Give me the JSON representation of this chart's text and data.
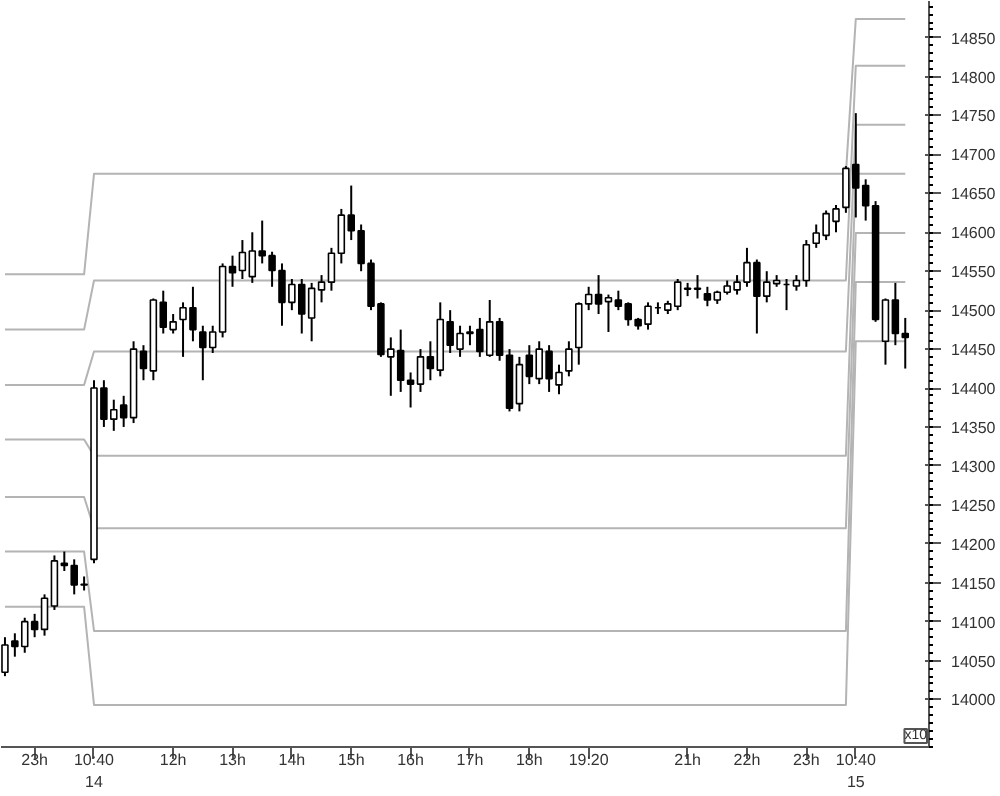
{
  "chart_data": {
    "type": "candlestick",
    "categories": [
      null,
      null,
      null,
      "23h",
      null,
      null,
      null,
      null,
      null,
      "10:40\n14",
      null,
      null,
      null,
      null,
      null,
      null,
      null,
      "12h",
      null,
      null,
      null,
      null,
      null,
      "13h",
      null,
      null,
      null,
      null,
      null,
      "14h",
      null,
      null,
      null,
      null,
      null,
      "15h",
      null,
      null,
      null,
      null,
      null,
      "16h",
      null,
      null,
      null,
      null,
      null,
      "17h",
      null,
      null,
      null,
      null,
      null,
      "18h",
      null,
      null,
      null,
      null,
      null,
      "19:20",
      null,
      null,
      null,
      null,
      null,
      null,
      null,
      null,
      null,
      "21h",
      null,
      null,
      null,
      null,
      null,
      "22h",
      null,
      null,
      null,
      null,
      null,
      "23h",
      null,
      null,
      null,
      null,
      "10:40\n15",
      null,
      null,
      null,
      null,
      null
    ],
    "ohlc": [
      [
        14035,
        14080,
        14030,
        14070
      ],
      [
        14075,
        14085,
        14055,
        14068
      ],
      [
        14068,
        14105,
        14060,
        14100
      ],
      [
        14100,
        14110,
        14080,
        14090
      ],
      [
        14090,
        14135,
        14082,
        14130
      ],
      [
        14120,
        14185,
        14115,
        14178
      ],
      [
        14175,
        14190,
        14165,
        14172
      ],
      [
        14172,
        14180,
        14135,
        14147
      ],
      [
        14147,
        14158,
        14140,
        14148
      ],
      [
        14180,
        14410,
        14175,
        14400
      ],
      [
        14400,
        14410,
        14350,
        14360
      ],
      [
        14360,
        14385,
        14345,
        14372
      ],
      [
        14378,
        14390,
        14350,
        14362
      ],
      [
        14362,
        14460,
        14355,
        14450
      ],
      [
        14447,
        14455,
        14410,
        14425
      ],
      [
        14422,
        14515,
        14410,
        14513
      ],
      [
        14510,
        14525,
        14470,
        14478
      ],
      [
        14475,
        14495,
        14470,
        14485
      ],
      [
        14488,
        14510,
        14440,
        14503
      ],
      [
        14503,
        14530,
        14460,
        14475
      ],
      [
        14472,
        14480,
        14410,
        14452
      ],
      [
        14452,
        14480,
        14445,
        14472
      ],
      [
        14472,
        14560,
        14465,
        14556
      ],
      [
        14556,
        14570,
        14530,
        14548
      ],
      [
        14551,
        14590,
        14540,
        14574
      ],
      [
        14543,
        14600,
        14535,
        14576
      ],
      [
        14576,
        14615,
        14560,
        14570
      ],
      [
        14570,
        14575,
        14530,
        14551
      ],
      [
        14551,
        14560,
        14480,
        14510
      ],
      [
        14510,
        14540,
        14500,
        14533
      ],
      [
        14533,
        14540,
        14470,
        14495
      ],
      [
        14490,
        14535,
        14460,
        14528
      ],
      [
        14526,
        14545,
        14510,
        14536
      ],
      [
        14536,
        14580,
        14525,
        14573
      ],
      [
        14573,
        14630,
        14560,
        14622
      ],
      [
        14622,
        14660,
        14590,
        14602
      ],
      [
        14602,
        14610,
        14550,
        14560
      ],
      [
        14560,
        14565,
        14500,
        14505
      ],
      [
        14508,
        14510,
        14440,
        14443
      ],
      [
        14440,
        14465,
        14390,
        14450
      ],
      [
        14448,
        14475,
        14395,
        14410
      ],
      [
        14410,
        14420,
        14375,
        14405
      ],
      [
        14405,
        14450,
        14395,
        14440
      ],
      [
        14440,
        14460,
        14410,
        14425
      ],
      [
        14423,
        14510,
        14415,
        14488
      ],
      [
        14485,
        14500,
        14445,
        14455
      ],
      [
        14450,
        14480,
        14440,
        14470
      ],
      [
        14470,
        14480,
        14455,
        14472
      ],
      [
        14475,
        14490,
        14440,
        14447
      ],
      [
        14442,
        14513,
        14440,
        14485
      ],
      [
        14485,
        14490,
        14435,
        14442
      ],
      [
        14442,
        14450,
        14370,
        14374
      ],
      [
        14380,
        14440,
        14370,
        14430
      ],
      [
        14442,
        14455,
        14405,
        14415
      ],
      [
        14412,
        14460,
        14405,
        14450
      ],
      [
        14447,
        14455,
        14395,
        14412
      ],
      [
        14404,
        14430,
        14392,
        14420
      ],
      [
        14422,
        14460,
        14415,
        14450
      ],
      [
        14452,
        14510,
        14430,
        14508
      ],
      [
        14508,
        14530,
        14500,
        14520
      ],
      [
        14520,
        14545,
        14495,
        14508
      ],
      [
        14511,
        14520,
        14472,
        14516
      ],
      [
        14513,
        14525,
        14500,
        14505
      ],
      [
        14508,
        14510,
        14480,
        14488
      ],
      [
        14488,
        14490,
        14475,
        14480
      ],
      [
        14482,
        14510,
        14475,
        14505
      ],
      [
        14503,
        14510,
        14495,
        14503
      ],
      [
        14500,
        14512,
        14495,
        14508
      ],
      [
        14505,
        14540,
        14500,
        14536
      ],
      [
        14528,
        14535,
        14518,
        14527
      ],
      [
        14527,
        14545,
        14515,
        14528
      ],
      [
        14521,
        14530,
        14505,
        14513
      ],
      [
        14513,
        14525,
        14508,
        14523
      ],
      [
        14523,
        14538,
        14520,
        14531
      ],
      [
        14526,
        14545,
        14520,
        14536
      ],
      [
        14536,
        14580,
        14530,
        14561
      ],
      [
        14561,
        14565,
        14470,
        14518
      ],
      [
        14518,
        14550,
        14510,
        14536
      ],
      [
        14534,
        14545,
        14530,
        14538
      ],
      [
        14533,
        14540,
        14500,
        14533
      ],
      [
        14531,
        14545,
        14525,
        14538
      ],
      [
        14538,
        14590,
        14530,
        14584
      ],
      [
        14586,
        14610,
        14580,
        14599
      ],
      [
        14596,
        14628,
        14590,
        14624
      ],
      [
        14614,
        14635,
        14600,
        14630
      ],
      [
        14632,
        14685,
        14625,
        14682
      ],
      [
        14687,
        14753,
        14619,
        14657
      ],
      [
        14660,
        14668,
        14615,
        14634
      ],
      [
        14634,
        14640,
        14485,
        14488
      ],
      [
        14460,
        14515,
        14430,
        14513
      ],
      [
        14513,
        14535,
        14455,
        14470
      ],
      [
        14470,
        14490,
        14425,
        14465
      ]
    ],
    "series": [
      {
        "type": "line",
        "color": "#b4b4b4",
        "values": [
          14546,
          14546,
          14546,
          14546,
          14546,
          14546,
          14546,
          14546,
          14546,
          14675,
          14675,
          14675,
          14675,
          14675,
          14675,
          14675,
          14675,
          14675,
          14675,
          14675,
          14675,
          14675,
          14675,
          14675,
          14675,
          14675,
          14675,
          14675,
          14675,
          14675,
          14675,
          14675,
          14675,
          14675,
          14675,
          14675,
          14675,
          14675,
          14675,
          14675,
          14675,
          14675,
          14675,
          14675,
          14675,
          14675,
          14675,
          14675,
          14675,
          14675,
          14675,
          14675,
          14675,
          14675,
          14675,
          14675,
          14675,
          14675,
          14675,
          14675,
          14675,
          14675,
          14675,
          14675,
          14675,
          14675,
          14675,
          14675,
          14675,
          14675,
          14675,
          14675,
          14675,
          14675,
          14675,
          14675,
          14675,
          14675,
          14675,
          14675,
          14675,
          14675,
          14675,
          14675,
          14675,
          14675,
          14874,
          14874,
          14874,
          14874,
          14874,
          14874
        ]
      },
      {
        "type": "line",
        "color": "#b4b4b4",
        "values": [
          14475,
          14475,
          14475,
          14475,
          14475,
          14475,
          14475,
          14475,
          14475,
          14538,
          14538,
          14538,
          14538,
          14538,
          14538,
          14538,
          14538,
          14538,
          14538,
          14538,
          14538,
          14538,
          14538,
          14538,
          14538,
          14538,
          14538,
          14538,
          14538,
          14538,
          14538,
          14538,
          14538,
          14538,
          14538,
          14538,
          14538,
          14538,
          14538,
          14538,
          14538,
          14538,
          14538,
          14538,
          14538,
          14538,
          14538,
          14538,
          14538,
          14538,
          14538,
          14538,
          14538,
          14538,
          14538,
          14538,
          14538,
          14538,
          14538,
          14538,
          14538,
          14538,
          14538,
          14538,
          14538,
          14538,
          14538,
          14538,
          14538,
          14538,
          14538,
          14538,
          14538,
          14538,
          14538,
          14538,
          14538,
          14538,
          14538,
          14538,
          14538,
          14538,
          14538,
          14538,
          14538,
          14538,
          14814,
          14814,
          14814,
          14814,
          14814,
          14814
        ]
      },
      {
        "type": "line",
        "color": "#b4b4b4",
        "values": [
          14404,
          14404,
          14404,
          14404,
          14404,
          14404,
          14404,
          14404,
          14404,
          14447,
          14447,
          14447,
          14447,
          14447,
          14447,
          14447,
          14447,
          14447,
          14447,
          14447,
          14447,
          14447,
          14447,
          14447,
          14447,
          14447,
          14447,
          14447,
          14447,
          14447,
          14447,
          14447,
          14447,
          14447,
          14447,
          14447,
          14447,
          14447,
          14447,
          14447,
          14447,
          14447,
          14447,
          14447,
          14447,
          14447,
          14447,
          14447,
          14447,
          14447,
          14447,
          14447,
          14447,
          14447,
          14447,
          14447,
          14447,
          14447,
          14447,
          14447,
          14447,
          14447,
          14447,
          14447,
          14447,
          14447,
          14447,
          14447,
          14447,
          14447,
          14447,
          14447,
          14447,
          14447,
          14447,
          14447,
          14447,
          14447,
          14447,
          14447,
          14447,
          14447,
          14447,
          14447,
          14447,
          14447,
          14738,
          14738,
          14738,
          14738,
          14738,
          14738
        ]
      },
      {
        "type": "line",
        "color": "#b4b4b4",
        "values": [
          14334,
          14334,
          14334,
          14334,
          14334,
          14334,
          14334,
          14334,
          14334,
          14313,
          14313,
          14313,
          14313,
          14313,
          14313,
          14313,
          14313,
          14313,
          14313,
          14313,
          14313,
          14313,
          14313,
          14313,
          14313,
          14313,
          14313,
          14313,
          14313,
          14313,
          14313,
          14313,
          14313,
          14313,
          14313,
          14313,
          14313,
          14313,
          14313,
          14313,
          14313,
          14313,
          14313,
          14313,
          14313,
          14313,
          14313,
          14313,
          14313,
          14313,
          14313,
          14313,
          14313,
          14313,
          14313,
          14313,
          14313,
          14313,
          14313,
          14313,
          14313,
          14313,
          14313,
          14313,
          14313,
          14313,
          14313,
          14313,
          14313,
          14313,
          14313,
          14313,
          14313,
          14313,
          14313,
          14313,
          14313,
          14313,
          14313,
          14313,
          14313,
          14313,
          14313,
          14313,
          14313,
          14313,
          14675,
          14675,
          14675,
          14675,
          14675,
          14675
        ]
      },
      {
        "type": "line",
        "color": "#b4b4b4",
        "values": [
          14260,
          14260,
          14260,
          14260,
          14260,
          14260,
          14260,
          14260,
          14260,
          14220,
          14220,
          14220,
          14220,
          14220,
          14220,
          14220,
          14220,
          14220,
          14220,
          14220,
          14220,
          14220,
          14220,
          14220,
          14220,
          14220,
          14220,
          14220,
          14220,
          14220,
          14220,
          14220,
          14220,
          14220,
          14220,
          14220,
          14220,
          14220,
          14220,
          14220,
          14220,
          14220,
          14220,
          14220,
          14220,
          14220,
          14220,
          14220,
          14220,
          14220,
          14220,
          14220,
          14220,
          14220,
          14220,
          14220,
          14220,
          14220,
          14220,
          14220,
          14220,
          14220,
          14220,
          14220,
          14220,
          14220,
          14220,
          14220,
          14220,
          14220,
          14220,
          14220,
          14220,
          14220,
          14220,
          14220,
          14220,
          14220,
          14220,
          14220,
          14220,
          14220,
          14220,
          14220,
          14220,
          14220,
          14599,
          14599,
          14599,
          14599,
          14599,
          14599
        ]
      },
      {
        "type": "line",
        "color": "#b4b4b4",
        "values": [
          14190,
          14190,
          14190,
          14190,
          14190,
          14190,
          14190,
          14190,
          14190,
          14088,
          14088,
          14088,
          14088,
          14088,
          14088,
          14088,
          14088,
          14088,
          14088,
          14088,
          14088,
          14088,
          14088,
          14088,
          14088,
          14088,
          14088,
          14088,
          14088,
          14088,
          14088,
          14088,
          14088,
          14088,
          14088,
          14088,
          14088,
          14088,
          14088,
          14088,
          14088,
          14088,
          14088,
          14088,
          14088,
          14088,
          14088,
          14088,
          14088,
          14088,
          14088,
          14088,
          14088,
          14088,
          14088,
          14088,
          14088,
          14088,
          14088,
          14088,
          14088,
          14088,
          14088,
          14088,
          14088,
          14088,
          14088,
          14088,
          14088,
          14088,
          14088,
          14088,
          14088,
          14088,
          14088,
          14088,
          14088,
          14088,
          14088,
          14088,
          14088,
          14088,
          14088,
          14088,
          14088,
          14088,
          14536,
          14536,
          14536,
          14536,
          14536,
          14536
        ]
      },
      {
        "type": "line",
        "color": "#b4b4b4",
        "values": [
          14119,
          14119,
          14119,
          14119,
          14119,
          14119,
          14119,
          14119,
          14119,
          13993,
          13993,
          13993,
          13993,
          13993,
          13993,
          13993,
          13993,
          13993,
          13993,
          13993,
          13993,
          13993,
          13993,
          13993,
          13993,
          13993,
          13993,
          13993,
          13993,
          13993,
          13993,
          13993,
          13993,
          13993,
          13993,
          13993,
          13993,
          13993,
          13993,
          13993,
          13993,
          13993,
          13993,
          13993,
          13993,
          13993,
          13993,
          13993,
          13993,
          13993,
          13993,
          13993,
          13993,
          13993,
          13993,
          13993,
          13993,
          13993,
          13993,
          13993,
          13993,
          13993,
          13993,
          13993,
          13993,
          13993,
          13993,
          13993,
          13993,
          13993,
          13993,
          13993,
          13993,
          13993,
          13993,
          13993,
          13993,
          13993,
          13993,
          13993,
          13993,
          13993,
          13993,
          13993,
          13993,
          13993,
          14460,
          14460,
          14460,
          14460,
          14460,
          14460
        ]
      }
    ],
    "ylim": [
      13939,
      14897
    ],
    "yticks": [
      14000,
      14050,
      14100,
      14150,
      14200,
      14250,
      14300,
      14350,
      14400,
      14450,
      14500,
      14550,
      14600,
      14650,
      14700,
      14750,
      14800,
      14850
    ],
    "annotations": [
      "x10"
    ]
  }
}
